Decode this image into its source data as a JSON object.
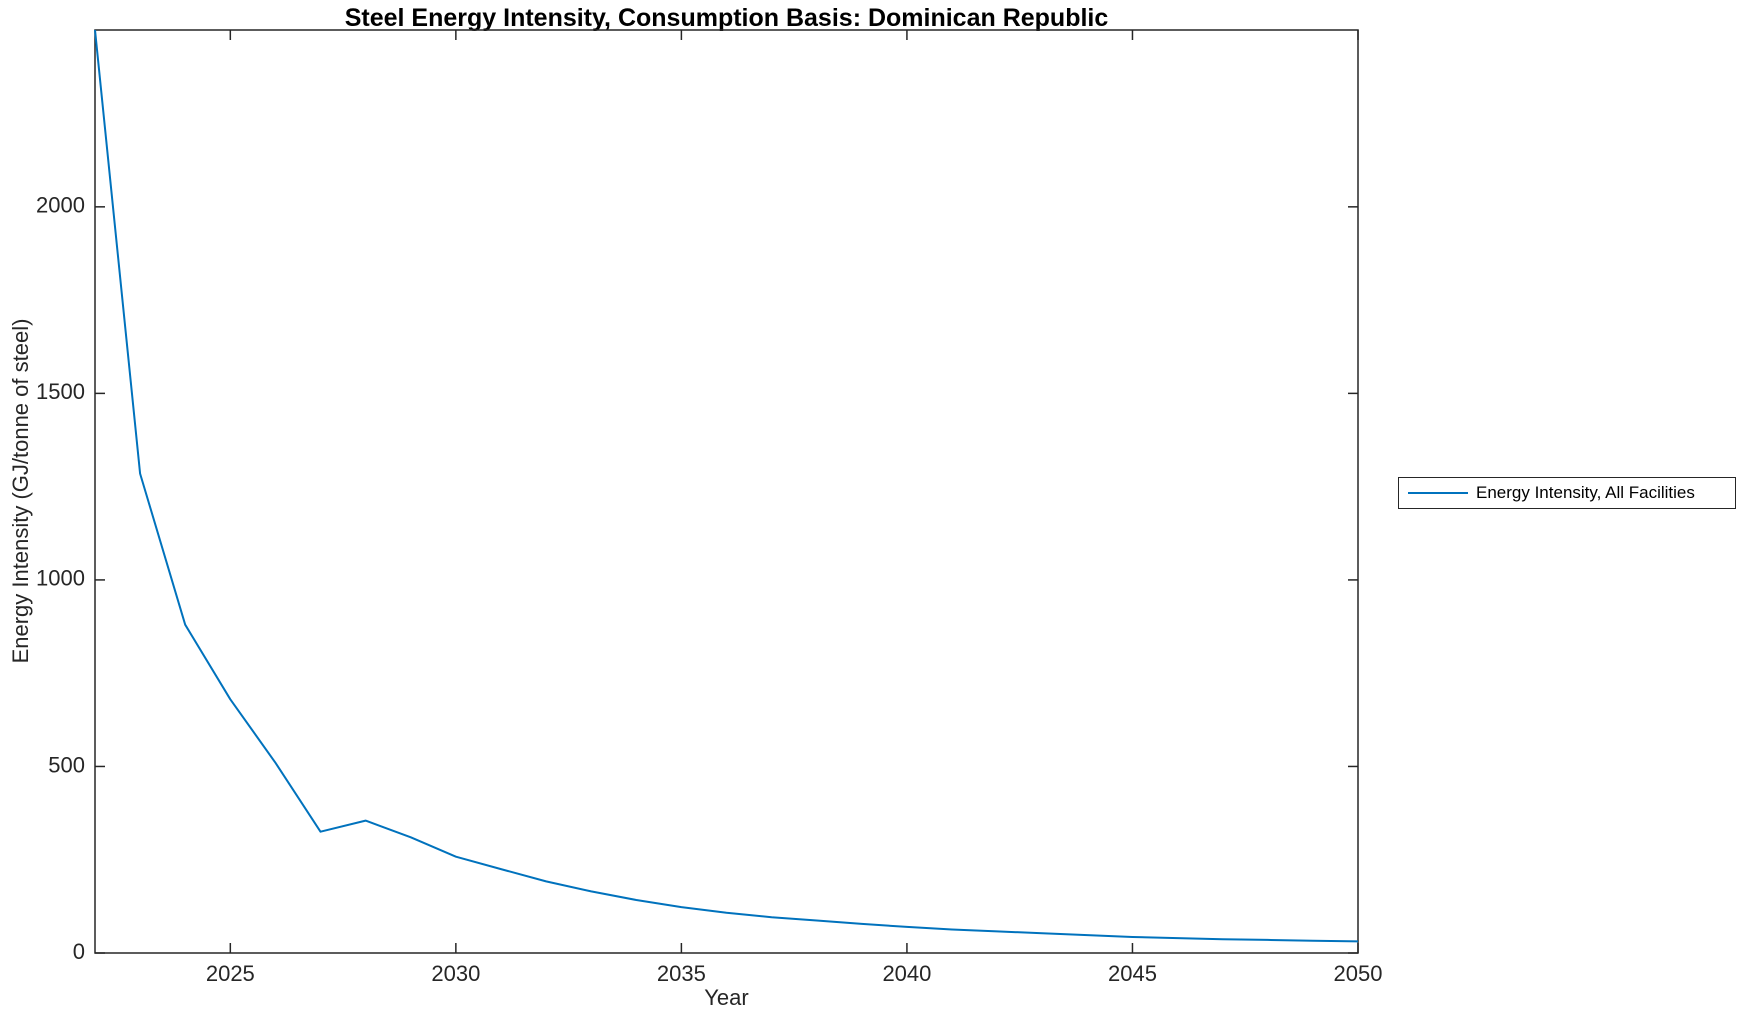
{
  "chart_data": {
    "type": "line",
    "title": "Steel Energy Intensity, Consumption Basis: Dominican Republic",
    "xlabel": "Year",
    "ylabel": "Energy Intensity (GJ/tonne of steel)",
    "legend": {
      "position": "outside-right",
      "entries": [
        {
          "label": "Energy Intensity, All Facilities",
          "color": "#0072BD"
        }
      ]
    },
    "x": [
      2022,
      2023,
      2024,
      2025,
      2026,
      2027,
      2028,
      2029,
      2030,
      2031,
      2032,
      2033,
      2034,
      2035,
      2036,
      2037,
      2038,
      2039,
      2040,
      2041,
      2042,
      2043,
      2044,
      2045,
      2046,
      2047,
      2048,
      2049,
      2050
    ],
    "series": [
      {
        "name": "Energy Intensity, All Facilities",
        "color": "#0072BD",
        "values": [
          2474,
          1285,
          880,
          680,
          510,
          325,
          355,
          310,
          258,
          225,
          192,
          165,
          142,
          123,
          108,
          96,
          87,
          78,
          70,
          63,
          58,
          53,
          48,
          43,
          40,
          37,
          35,
          33,
          31
        ]
      }
    ],
    "xlim": [
      2022,
      2050
    ],
    "ylim": [
      0,
      2474
    ],
    "xticks": [
      2025,
      2030,
      2035,
      2040,
      2045,
      2050
    ],
    "yticks": [
      0,
      500,
      1000,
      1500,
      2000
    ],
    "grid": false,
    "axis_color": "#262626",
    "tick_label_color": "#262626",
    "line_color": "#0072BD",
    "background": "#FFFFFF"
  }
}
